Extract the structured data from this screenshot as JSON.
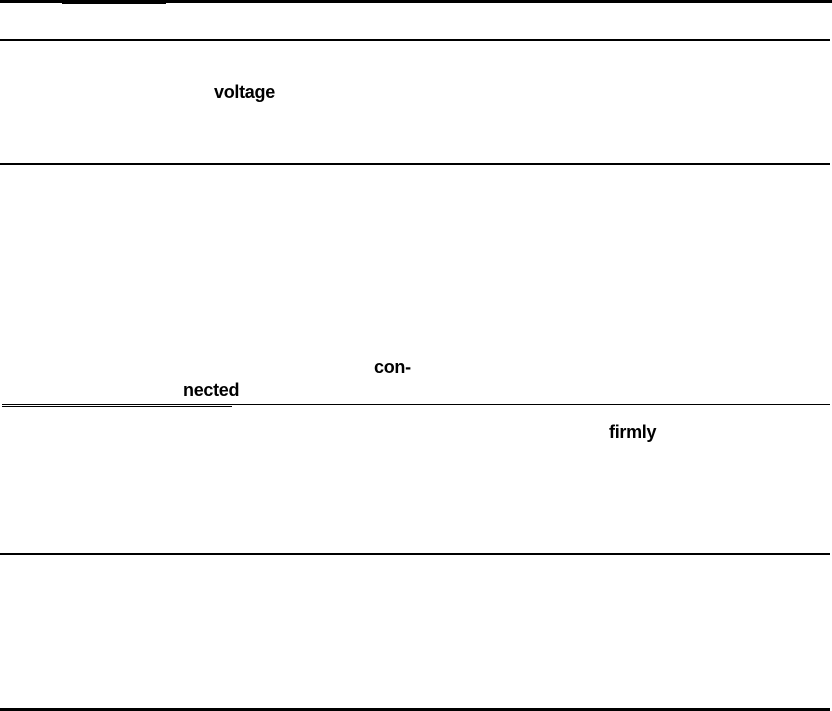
{
  "words": {
    "w1": "voltage",
    "w2": "con-",
    "w3": "nected",
    "w4": "firmly"
  }
}
